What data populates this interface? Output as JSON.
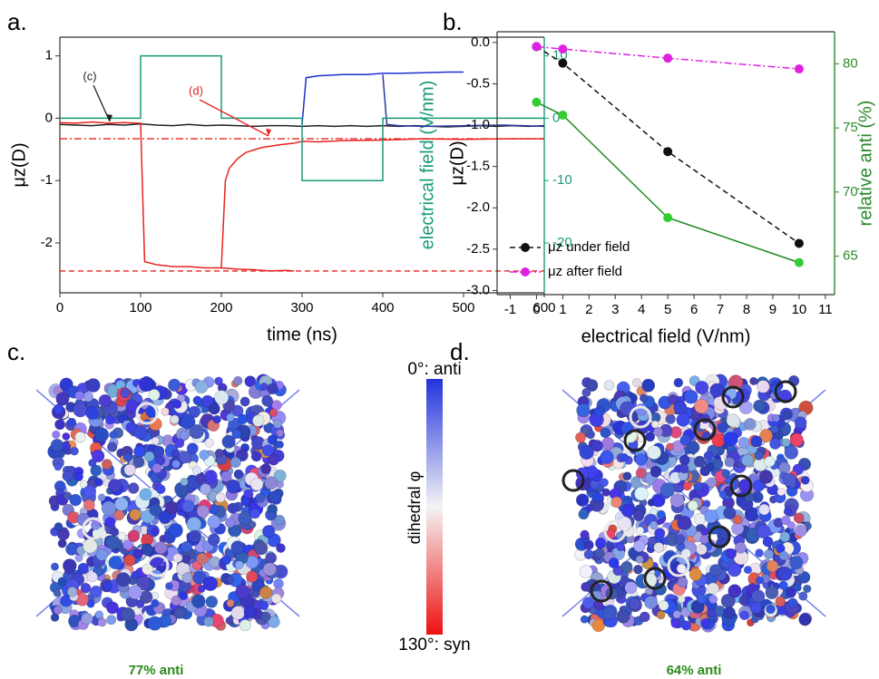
{
  "chart_data": [
    {
      "type": "line",
      "xlabel": "time (ns)",
      "ylabel": "μz(D)",
      "y2label": "electrical field (V/nm)",
      "y2color": "#1a9a7a",
      "xlim": [
        0,
        600
      ],
      "xticks": [
        0,
        100,
        200,
        300,
        400,
        500,
        600
      ],
      "ylim": [
        -2.8,
        1.3
      ],
      "yticks": [
        1,
        0,
        -1,
        -2
      ],
      "y2lim": [
        -28,
        13
      ],
      "y2ticks": [
        10,
        0,
        -10,
        -20
      ],
      "series": [
        {
          "color": "#222222",
          "linestyle": "solid",
          "x": [
            0,
            20,
            40,
            60,
            80,
            100,
            120,
            140,
            160,
            180,
            200,
            220,
            240,
            260,
            280,
            300,
            320,
            340,
            360,
            380,
            400,
            420,
            440,
            460,
            480,
            500,
            520,
            540,
            560,
            580,
            600
          ],
          "values": [
            -0.1,
            -0.11,
            -0.12,
            -0.1,
            -0.11,
            -0.09,
            -0.11,
            -0.12,
            -0.1,
            -0.12,
            -0.11,
            -0.12,
            -0.13,
            -0.12,
            -0.12,
            -0.13,
            -0.12,
            -0.13,
            -0.12,
            -0.13,
            -0.12,
            -0.13,
            -0.12,
            -0.13,
            -0.14,
            -0.13,
            -0.12,
            -0.13,
            -0.12,
            -0.13,
            -0.12
          ]
        },
        {
          "color": "#e8231f",
          "linestyle": "solid",
          "x": [
            0,
            20,
            40,
            60,
            80,
            100,
            105,
            120,
            140,
            160,
            180,
            200,
            220,
            240,
            260,
            280,
            290
          ],
          "values": [
            -0.07,
            -0.08,
            -0.06,
            -0.08,
            -0.07,
            -0.08,
            -2.3,
            -2.35,
            -2.38,
            -2.38,
            -2.4,
            -2.4,
            -2.42,
            -2.43,
            -2.45,
            -2.44,
            -2.45
          ]
        },
        {
          "color": "#e8231f",
          "linestyle": "solid",
          "x": [
            200,
            205,
            210,
            220,
            230,
            250,
            270,
            290,
            300,
            320,
            350,
            400,
            450,
            500,
            550,
            600
          ],
          "values": [
            -2.4,
            -1.0,
            -0.8,
            -0.65,
            -0.55,
            -0.47,
            -0.43,
            -0.4,
            -0.37,
            -0.38,
            -0.36,
            -0.35,
            -0.33,
            -0.34,
            -0.33,
            -0.33
          ]
        },
        {
          "color": "#1f2fd1",
          "linestyle": "solid",
          "x": [
            300,
            305,
            320,
            350,
            380,
            400,
            420,
            450,
            480,
            500
          ],
          "values": [
            -0.1,
            0.65,
            0.68,
            0.7,
            0.7,
            0.72,
            0.72,
            0.73,
            0.74,
            0.74
          ]
        },
        {
          "color": "#2a3aa8",
          "linestyle": "solid",
          "x": [
            400,
            405,
            420,
            450,
            500,
            550,
            600
          ],
          "values": [
            0.7,
            -0.1,
            -0.12,
            -0.13,
            -0.12,
            -0.11,
            -0.13
          ]
        },
        {
          "color": "#1a9a7a",
          "linestyle": "solid",
          "axis": "y2",
          "x": [
            0,
            100,
            100,
            200,
            200,
            300,
            300,
            400,
            400,
            600
          ],
          "values": [
            0,
            0,
            10,
            10,
            0,
            0,
            -10,
            -10,
            0,
            0
          ]
        }
      ],
      "reference_lines": [
        {
          "value": -2.45,
          "color": "#e8231f",
          "style": "dashed"
        },
        {
          "value": -0.33,
          "color": "#e8231f",
          "style": "dashdot"
        }
      ],
      "annotations": [
        {
          "text": "(c)",
          "color": "#222222"
        },
        {
          "text": "(d)",
          "color": "#e8231f"
        }
      ]
    },
    {
      "type": "line",
      "markers": true,
      "xlabel": "electrical field (V/nm)",
      "ylabel": "μz(D)",
      "y2label": "relative anti (%)",
      "y2color": "#2a8a2a",
      "x": [
        0,
        1,
        5,
        10
      ],
      "xlim": [
        -1.5,
        11.35
      ],
      "xticks": [
        -1,
        0,
        1,
        2,
        3,
        4,
        5,
        6,
        7,
        8,
        9,
        10,
        11
      ],
      "ylim": [
        -3.05,
        0.13
      ],
      "yticks": [
        {
          "value": 0,
          "label": "0.0"
        },
        -0.5,
        {
          "value": -1,
          "label": "-1.0"
        },
        -1.5,
        {
          "value": -2,
          "label": "-2.0"
        },
        -2.5,
        {
          "value": -3,
          "label": "-3.0"
        }
      ],
      "y2lim": [
        62,
        82.5
      ],
      "y2ticks": [
        65,
        70,
        75,
        80
      ],
      "series": [
        {
          "name": "μz under field",
          "color": "#111111",
          "linestyle": "dashed",
          "values": [
            -0.05,
            -0.25,
            -1.32,
            -2.43
          ]
        },
        {
          "name": "μz after field",
          "color": "#e020e0",
          "linestyle": "dashdot",
          "values": [
            -0.05,
            -0.08,
            -0.19,
            -0.32
          ]
        },
        {
          "color": "#1f8a1f",
          "marker_color": "#33cc33",
          "linestyle": "solid",
          "axis": "y2",
          "values": [
            77,
            76,
            68,
            64.5
          ]
        }
      ],
      "legend": "lower left"
    }
  ],
  "panels": [
    "a.",
    "b.",
    "c.",
    "d."
  ],
  "colorbar": {
    "top": "0°: anti",
    "title": "dihedral φ",
    "bottom": "130°: syn"
  },
  "captions": [
    "77% anti",
    "64% anti"
  ]
}
